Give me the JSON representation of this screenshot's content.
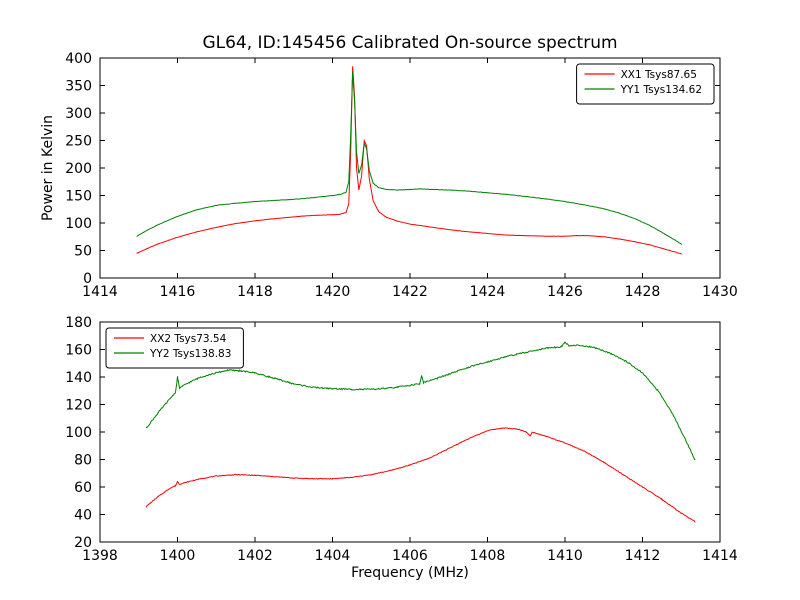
{
  "chart_data": [
    {
      "type": "line",
      "title": "GL64, ID:145456 Calibrated On-source spectrum",
      "xlabel": "",
      "ylabel": "Power in Kelvin",
      "xlim": [
        1414,
        1430
      ],
      "ylim": [
        0,
        400
      ],
      "xticks": [
        1414,
        1416,
        1418,
        1420,
        1422,
        1424,
        1426,
        1428,
        1430
      ],
      "yticks": [
        0,
        50,
        100,
        150,
        200,
        250,
        300,
        350,
        400
      ],
      "grid": false,
      "legend_position": "upper right",
      "series": [
        {
          "name": "XX1 Tsys87.65",
          "color": "#ff0000",
          "noise": 0.5,
          "points": [
            [
              1414.95,
              45
            ],
            [
              1415.2,
              53
            ],
            [
              1415.5,
              62
            ],
            [
              1416,
              74
            ],
            [
              1416.5,
              84
            ],
            [
              1417,
              92
            ],
            [
              1417.5,
              99
            ],
            [
              1418,
              104
            ],
            [
              1418.5,
              108
            ],
            [
              1419,
              111
            ],
            [
              1419.3,
              113
            ],
            [
              1419.6,
              114
            ],
            [
              1420,
              115
            ],
            [
              1420.2,
              116
            ],
            [
              1420.35,
              119
            ],
            [
              1420.42,
              135
            ],
            [
              1420.47,
              230
            ],
            [
              1420.52,
              385
            ],
            [
              1420.57,
              330
            ],
            [
              1420.62,
              200
            ],
            [
              1420.68,
              160
            ],
            [
              1420.75,
              185
            ],
            [
              1420.82,
              250
            ],
            [
              1420.88,
              240
            ],
            [
              1420.95,
              180
            ],
            [
              1421.05,
              140
            ],
            [
              1421.2,
              120
            ],
            [
              1421.4,
              110
            ],
            [
              1421.7,
              103
            ],
            [
              1422,
              98
            ],
            [
              1422.5,
              93
            ],
            [
              1423,
              88
            ],
            [
              1423.5,
              84
            ],
            [
              1424,
              81
            ],
            [
              1424.5,
              78
            ],
            [
              1425,
              77
            ],
            [
              1425.5,
              76
            ],
            [
              1426,
              76
            ],
            [
              1426.3,
              77
            ],
            [
              1426.6,
              77
            ],
            [
              1427,
              75
            ],
            [
              1427.4,
              71
            ],
            [
              1427.8,
              66
            ],
            [
              1428.2,
              60
            ],
            [
              1428.6,
              52
            ],
            [
              1429,
              44
            ]
          ]
        },
        {
          "name": "YY1 Tsys134.62",
          "color": "#008000",
          "noise": 0.7,
          "points": [
            [
              1414.95,
              76
            ],
            [
              1415.2,
              86
            ],
            [
              1415.5,
              97
            ],
            [
              1416,
              112
            ],
            [
              1416.5,
              124
            ],
            [
              1417,
              132
            ],
            [
              1417.5,
              136
            ],
            [
              1418,
              139
            ],
            [
              1418.5,
              141
            ],
            [
              1419,
              143
            ],
            [
              1419.5,
              146
            ],
            [
              1420,
              150
            ],
            [
              1420.2,
              152
            ],
            [
              1420.35,
              156
            ],
            [
              1420.42,
              175
            ],
            [
              1420.47,
              260
            ],
            [
              1420.52,
              375
            ],
            [
              1420.57,
              320
            ],
            [
              1420.62,
              230
            ],
            [
              1420.68,
              190
            ],
            [
              1420.75,
              205
            ],
            [
              1420.82,
              245
            ],
            [
              1420.88,
              235
            ],
            [
              1420.95,
              195
            ],
            [
              1421.05,
              172
            ],
            [
              1421.2,
              164
            ],
            [
              1421.4,
              161
            ],
            [
              1421.7,
              160
            ],
            [
              1422,
              161
            ],
            [
              1422.3,
              162
            ],
            [
              1422.6,
              161
            ],
            [
              1423,
              160
            ],
            [
              1423.5,
              158
            ],
            [
              1424,
              155
            ],
            [
              1424.5,
              152
            ],
            [
              1425,
              148
            ],
            [
              1425.5,
              144
            ],
            [
              1426,
              139
            ],
            [
              1426.5,
              133
            ],
            [
              1427,
              126
            ],
            [
              1427.4,
              118
            ],
            [
              1427.8,
              108
            ],
            [
              1428.2,
              95
            ],
            [
              1428.6,
              79
            ],
            [
              1429,
              62
            ]
          ]
        }
      ]
    },
    {
      "type": "line",
      "title": "",
      "xlabel": "Frequency (MHz)",
      "ylabel": "",
      "xlim": [
        1398,
        1414
      ],
      "ylim": [
        20,
        180
      ],
      "xticks": [
        1398,
        1400,
        1402,
        1404,
        1406,
        1408,
        1410,
        1412,
        1414
      ],
      "yticks": [
        20,
        40,
        60,
        80,
        100,
        120,
        140,
        160,
        180
      ],
      "grid": false,
      "legend_position": "upper left",
      "series": [
        {
          "name": "XX2 Tsys73.54",
          "color": "#ff0000",
          "noise": 0.5,
          "points": [
            [
              1399.2,
              46
            ],
            [
              1399.5,
              53
            ],
            [
              1399.8,
              59
            ],
            [
              1399.95,
              61
            ],
            [
              1400.0,
              64
            ],
            [
              1400.05,
              62
            ],
            [
              1400.3,
              64
            ],
            [
              1400.6,
              66
            ],
            [
              1401,
              68
            ],
            [
              1401.5,
              69
            ],
            [
              1402,
              68.5
            ],
            [
              1402.5,
              67.5
            ],
            [
              1403,
              66.5
            ],
            [
              1403.5,
              66
            ],
            [
              1404,
              66
            ],
            [
              1404.5,
              67
            ],
            [
              1405,
              69
            ],
            [
              1405.5,
              72
            ],
            [
              1406,
              76
            ],
            [
              1406.5,
              81
            ],
            [
              1407,
              88
            ],
            [
              1407.5,
              95
            ],
            [
              1408,
              101
            ],
            [
              1408.4,
              103
            ],
            [
              1408.8,
              102
            ],
            [
              1409.0,
              100
            ],
            [
              1409.1,
              97
            ],
            [
              1409.15,
              100
            ],
            [
              1409.5,
              97
            ],
            [
              1410,
              92
            ],
            [
              1410.5,
              86
            ],
            [
              1411,
              78
            ],
            [
              1411.5,
              69
            ],
            [
              1412,
              60
            ],
            [
              1412.5,
              51
            ],
            [
              1413,
              41
            ],
            [
              1413.35,
              35
            ]
          ]
        },
        {
          "name": "YY2 Tsys138.83",
          "color": "#008000",
          "noise": 1.0,
          "points": [
            [
              1399.2,
              103
            ],
            [
              1399.5,
              114
            ],
            [
              1399.8,
              124
            ],
            [
              1399.95,
              129
            ],
            [
              1400.0,
              140
            ],
            [
              1400.05,
              132
            ],
            [
              1400.3,
              136
            ],
            [
              1400.6,
              140
            ],
            [
              1401,
              143
            ],
            [
              1401.3,
              145
            ],
            [
              1401.6,
              144.5
            ],
            [
              1402,
              143
            ],
            [
              1402.5,
              139
            ],
            [
              1403,
              135
            ],
            [
              1403.5,
              132.5
            ],
            [
              1404,
              131.5
            ],
            [
              1404.5,
              131
            ],
            [
              1405,
              131
            ],
            [
              1405.5,
              132
            ],
            [
              1406,
              134
            ],
            [
              1406.25,
              135
            ],
            [
              1406.3,
              141
            ],
            [
              1406.35,
              136
            ],
            [
              1406.7,
              139
            ],
            [
              1407,
              142
            ],
            [
              1407.5,
              147
            ],
            [
              1408,
              151
            ],
            [
              1408.5,
              155
            ],
            [
              1409,
              158
            ],
            [
              1409.5,
              161
            ],
            [
              1409.9,
              162
            ],
            [
              1410.0,
              165
            ],
            [
              1410.1,
              163
            ],
            [
              1410.4,
              163
            ],
            [
              1410.8,
              161
            ],
            [
              1411.2,
              157
            ],
            [
              1411.6,
              151
            ],
            [
              1412,
              143
            ],
            [
              1412.4,
              130
            ],
            [
              1412.8,
              112
            ],
            [
              1413.1,
              95
            ],
            [
              1413.35,
              80
            ]
          ]
        }
      ]
    }
  ]
}
